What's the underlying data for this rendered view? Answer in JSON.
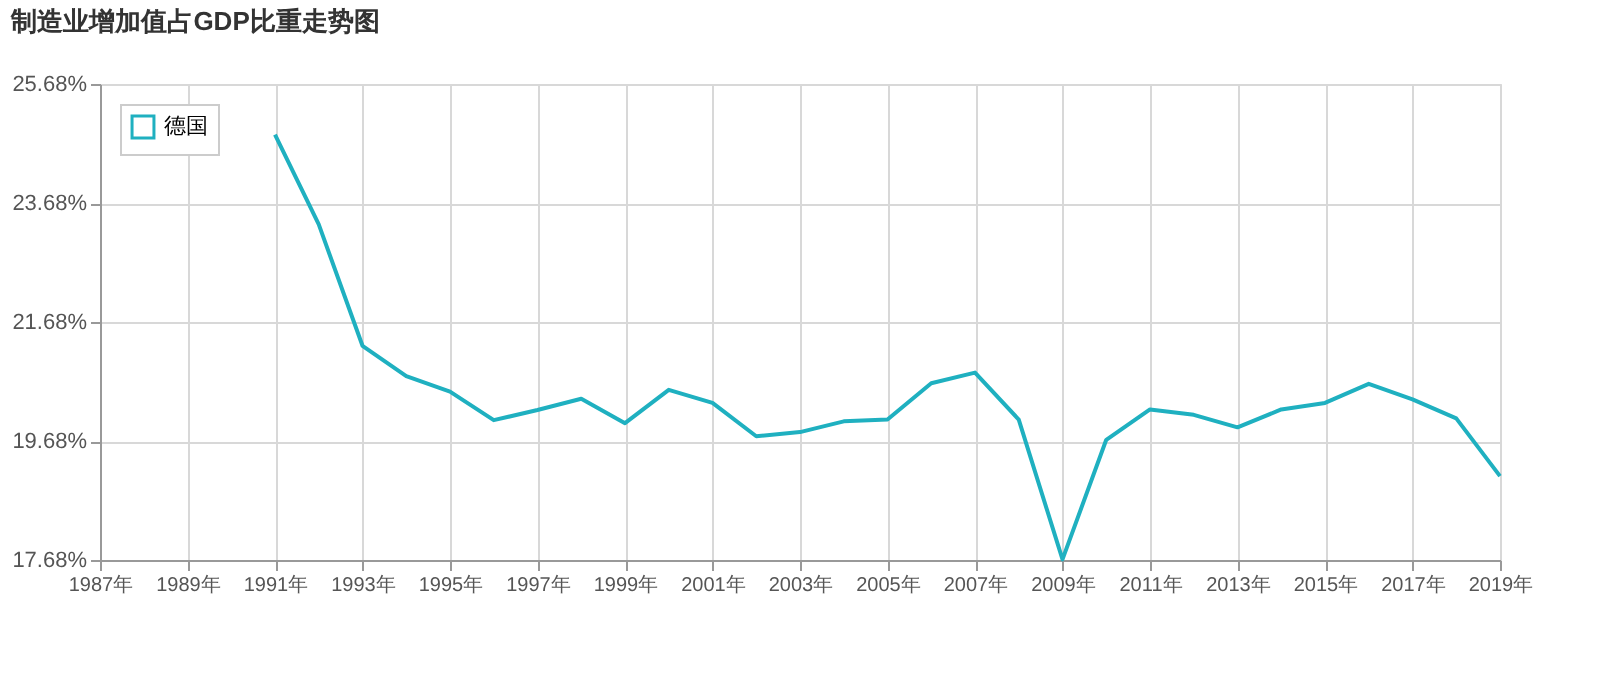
{
  "chart_data": {
    "type": "line",
    "title": "制造业增加值占GDP比重走势图",
    "x": [
      1991,
      1992,
      1993,
      1994,
      1995,
      1996,
      1997,
      1998,
      1999,
      2000,
      2001,
      2002,
      2003,
      2004,
      2005,
      2006,
      2007,
      2008,
      2009,
      2010,
      2011,
      2012,
      2013,
      2014,
      2015,
      2016,
      2017,
      2018,
      2019
    ],
    "series": [
      {
        "name": "德国",
        "color": "#1fb0c0",
        "values": [
          24.83,
          23.32,
          21.28,
          20.77,
          20.51,
          20.03,
          20.2,
          20.39,
          19.98,
          20.54,
          20.32,
          19.76,
          19.83,
          20.01,
          20.04,
          20.65,
          20.83,
          20.04,
          17.69,
          19.7,
          20.21,
          20.12,
          19.91,
          20.21,
          20.32,
          20.64,
          20.38,
          20.06,
          19.09
        ]
      }
    ],
    "xlim": [
      1987,
      2019
    ],
    "xticks": [
      {
        "value": 1987,
        "label": "1987年"
      },
      {
        "value": 1989,
        "label": "1989年"
      },
      {
        "value": 1991,
        "label": "1991年"
      },
      {
        "value": 1993,
        "label": "1993年"
      },
      {
        "value": 1995,
        "label": "1995年"
      },
      {
        "value": 1997,
        "label": "1997年"
      },
      {
        "value": 1999,
        "label": "1999年"
      },
      {
        "value": 2001,
        "label": "2001年"
      },
      {
        "value": 2003,
        "label": "2003年"
      },
      {
        "value": 2005,
        "label": "2005年"
      },
      {
        "value": 2007,
        "label": "2007年"
      },
      {
        "value": 2009,
        "label": "2009年"
      },
      {
        "value": 2011,
        "label": "2011年"
      },
      {
        "value": 2013,
        "label": "2013年"
      },
      {
        "value": 2015,
        "label": "2015年"
      },
      {
        "value": 2017,
        "label": "2017年"
      },
      {
        "value": 2019,
        "label": "2019年"
      }
    ],
    "ylim": [
      17.68,
      25.68
    ],
    "yticks": [
      {
        "value": 17.68,
        "label": "17.68%"
      },
      {
        "value": 19.68,
        "label": "19.68%"
      },
      {
        "value": 21.68,
        "label": "21.68%"
      },
      {
        "value": 23.68,
        "label": "23.68%"
      },
      {
        "value": 25.68,
        "label": "25.68%"
      }
    ],
    "grid": true,
    "legend": "top left",
    "marker": "none",
    "line_style": "solid"
  }
}
